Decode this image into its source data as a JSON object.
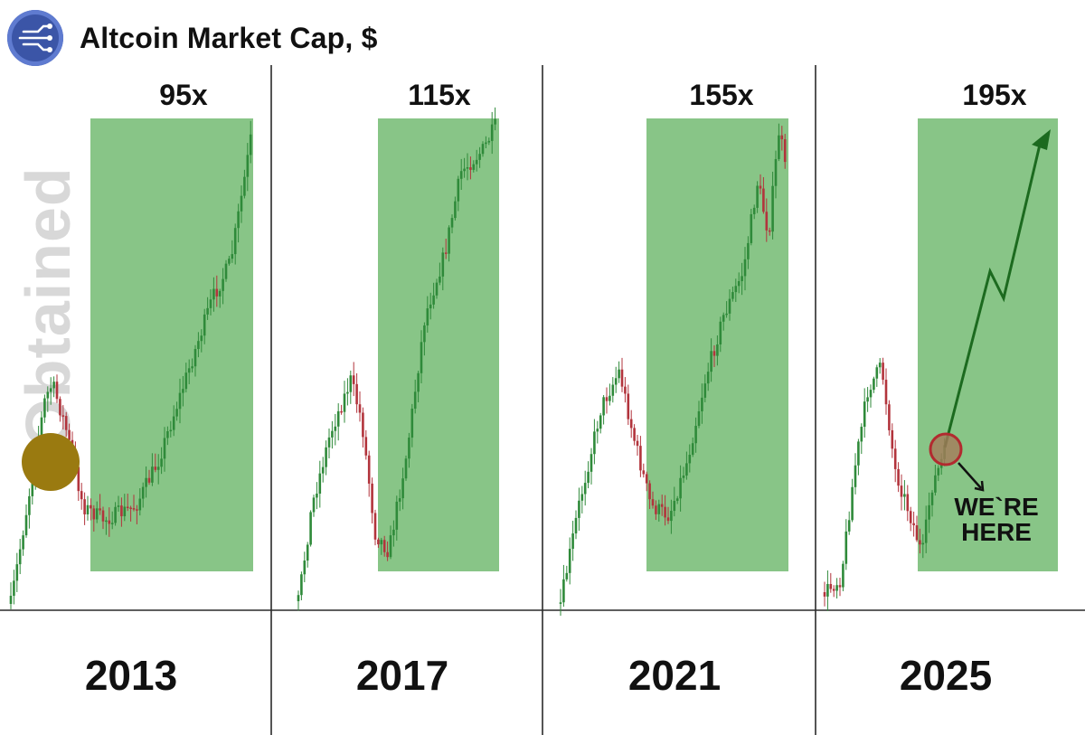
{
  "header": {
    "title": "Altcoin Market Cap, $",
    "logo_icon": "network-circuit-icon",
    "logo_color": "#3b55a7"
  },
  "watermark": {
    "text": "Obtained"
  },
  "chart_data": {
    "type": "candlestick",
    "title": "Altcoin Market Cap, $",
    "panels": [
      {
        "cycle": "2013",
        "multiplier": "95x"
      },
      {
        "cycle": "2017",
        "multiplier": "115x"
      },
      {
        "cycle": "2021",
        "multiplier": "155x"
      },
      {
        "cycle": "2025",
        "multiplier": "195x"
      }
    ],
    "annotation": {
      "panel": "2025",
      "lines": [
        "WE`RE",
        "HERE"
      ]
    },
    "colors": {
      "highlight": "#88c587",
      "up": "#2f8a3a",
      "down": "#b2343c",
      "arrow": "#1c6a1f",
      "marker": "#b22a2f",
      "divider": "#2a2a2a"
    },
    "grid": false
  }
}
